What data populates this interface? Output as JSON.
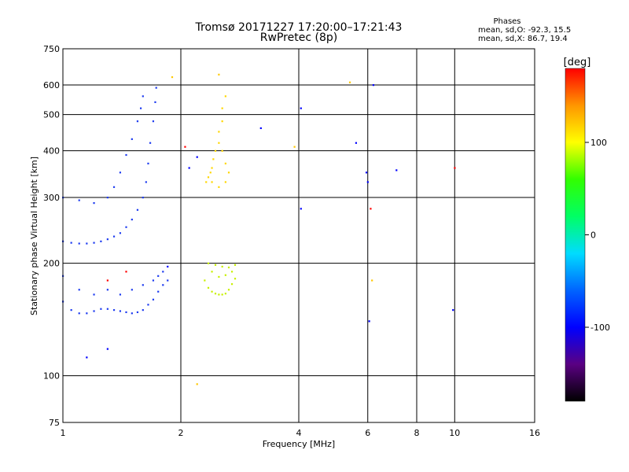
{
  "header": {
    "title": "Tromsø 20171227 17:20:00–17:21:43",
    "subtitle": "RwPretec (8p)"
  },
  "phase_info": {
    "heading": "Phases",
    "line_o": "mean, sd,O: -92.3, 15.5",
    "line_x": "mean, sd,X: 86.7, 19.4"
  },
  "chart_data": {
    "type": "scatter",
    "title": "Tromsø 20171227 17:20:00–17:21:43",
    "subtitle": "RwPretec (8p)",
    "xlabel": "Frequency [MHz]",
    "ylabel": "Stationary phase Virtual Height [km]",
    "x_scale": "log",
    "y_scale": "log",
    "xlim": [
      1,
      16
    ],
    "ylim": [
      75,
      750
    ],
    "x_ticks": [
      1,
      2,
      4,
      6,
      8,
      10,
      16
    ],
    "y_ticks": [
      75,
      100,
      200,
      300,
      400,
      500,
      600,
      750
    ],
    "y_tick_labels": [
      "75",
      "100",
      "200",
      "300",
      "400",
      "500",
      "600",
      "750"
    ],
    "grid": true,
    "colorbar": {
      "label": "[deg]",
      "ticks": [
        100,
        0,
        -100
      ],
      "range": [
        -180,
        180
      ],
      "colors": [
        "#000000",
        "#5a0082",
        "#0000ff",
        "#0064ff",
        "#00dcff",
        "#00ff64",
        "#32ff00",
        "#ffff00",
        "#ff9600",
        "#ff0000"
      ]
    },
    "series": [
      {
        "color": "#1e3cf0",
        "points": [
          [
            1.0,
            229
          ],
          [
            1.05,
            227
          ],
          [
            1.1,
            226
          ],
          [
            1.15,
            226
          ],
          [
            1.2,
            227
          ],
          [
            1.25,
            229
          ],
          [
            1.3,
            232
          ],
          [
            1.35,
            236
          ],
          [
            1.4,
            241
          ],
          [
            1.45,
            250
          ],
          [
            1.5,
            262
          ],
          [
            1.55,
            278
          ],
          [
            1.6,
            300
          ],
          [
            1.63,
            330
          ],
          [
            1.65,
            370
          ],
          [
            1.67,
            420
          ],
          [
            1.7,
            480
          ],
          [
            1.72,
            540
          ],
          [
            1.73,
            590
          ],
          [
            1.0,
            300
          ],
          [
            1.1,
            295
          ],
          [
            1.2,
            290
          ],
          [
            1.3,
            300
          ],
          [
            1.35,
            320
          ],
          [
            1.4,
            350
          ],
          [
            1.45,
            390
          ],
          [
            1.5,
            430
          ],
          [
            1.55,
            480
          ],
          [
            1.58,
            520
          ],
          [
            1.6,
            560
          ]
        ]
      },
      {
        "color": "#1e3cf0",
        "points": [
          [
            1.0,
            158
          ],
          [
            1.05,
            150
          ],
          [
            1.1,
            147
          ],
          [
            1.15,
            147
          ],
          [
            1.2,
            149
          ],
          [
            1.25,
            151
          ],
          [
            1.3,
            151
          ],
          [
            1.35,
            150
          ],
          [
            1.4,
            149
          ],
          [
            1.45,
            148
          ],
          [
            1.5,
            147
          ],
          [
            1.55,
            148
          ],
          [
            1.6,
            150
          ],
          [
            1.65,
            155
          ],
          [
            1.7,
            160
          ],
          [
            1.75,
            168
          ],
          [
            1.8,
            175
          ],
          [
            1.85,
            180
          ],
          [
            1.0,
            185
          ],
          [
            1.1,
            170
          ],
          [
            1.2,
            165
          ],
          [
            1.3,
            170
          ],
          [
            1.4,
            165
          ],
          [
            1.5,
            170
          ],
          [
            1.6,
            175
          ],
          [
            1.7,
            180
          ],
          [
            1.75,
            185
          ],
          [
            1.8,
            190
          ]
        ]
      },
      {
        "color": "#ffd700",
        "points": [
          [
            2.32,
            330
          ],
          [
            2.35,
            340
          ],
          [
            2.38,
            350
          ],
          [
            2.4,
            360
          ],
          [
            2.42,
            380
          ],
          [
            2.45,
            400
          ],
          [
            2.5,
            420
          ],
          [
            2.55,
            400
          ],
          [
            2.6,
            370
          ],
          [
            2.65,
            350
          ],
          [
            2.6,
            330
          ],
          [
            2.5,
            320
          ],
          [
            2.4,
            330
          ],
          [
            2.5,
            450
          ],
          [
            2.55,
            480
          ],
          [
            2.55,
            520
          ],
          [
            2.6,
            560
          ]
        ]
      },
      {
        "color": "#c8f000",
        "points": [
          [
            2.3,
            180
          ],
          [
            2.35,
            172
          ],
          [
            2.4,
            168
          ],
          [
            2.45,
            166
          ],
          [
            2.5,
            165
          ],
          [
            2.55,
            165
          ],
          [
            2.6,
            166
          ],
          [
            2.65,
            170
          ],
          [
            2.7,
            176
          ],
          [
            2.75,
            182
          ],
          [
            2.7,
            190
          ],
          [
            2.6,
            186
          ],
          [
            2.5,
            184
          ],
          [
            2.4,
            190
          ],
          [
            2.35,
            200
          ],
          [
            2.45,
            198
          ],
          [
            2.55,
            196
          ],
          [
            2.65,
            195
          ],
          [
            2.75,
            198
          ]
        ]
      },
      {
        "color": "#0000ff",
        "points": [
          [
            1.15,
            112
          ],
          [
            1.3,
            118
          ],
          [
            1.85,
            196
          ],
          [
            2.1,
            360
          ],
          [
            2.2,
            385
          ],
          [
            3.2,
            460
          ],
          [
            4.05,
            520
          ],
          [
            4.05,
            280
          ],
          [
            5.6,
            420
          ],
          [
            5.95,
            350
          ],
          [
            6.0,
            330
          ],
          [
            6.05,
            140
          ],
          [
            6.2,
            600
          ],
          [
            7.1,
            355
          ],
          [
            9.9,
            150
          ]
        ]
      },
      {
        "color": "#ff0000",
        "points": [
          [
            1.3,
            180
          ],
          [
            1.45,
            190
          ],
          [
            2.05,
            410
          ],
          [
            6.1,
            280
          ],
          [
            10.0,
            360
          ]
        ]
      },
      {
        "color": "#ffc800",
        "points": [
          [
            1.9,
            630
          ],
          [
            2.2,
            95
          ],
          [
            2.5,
            640
          ],
          [
            3.9,
            410
          ],
          [
            5.4,
            610
          ],
          [
            6.15,
            180
          ]
        ]
      }
    ]
  }
}
